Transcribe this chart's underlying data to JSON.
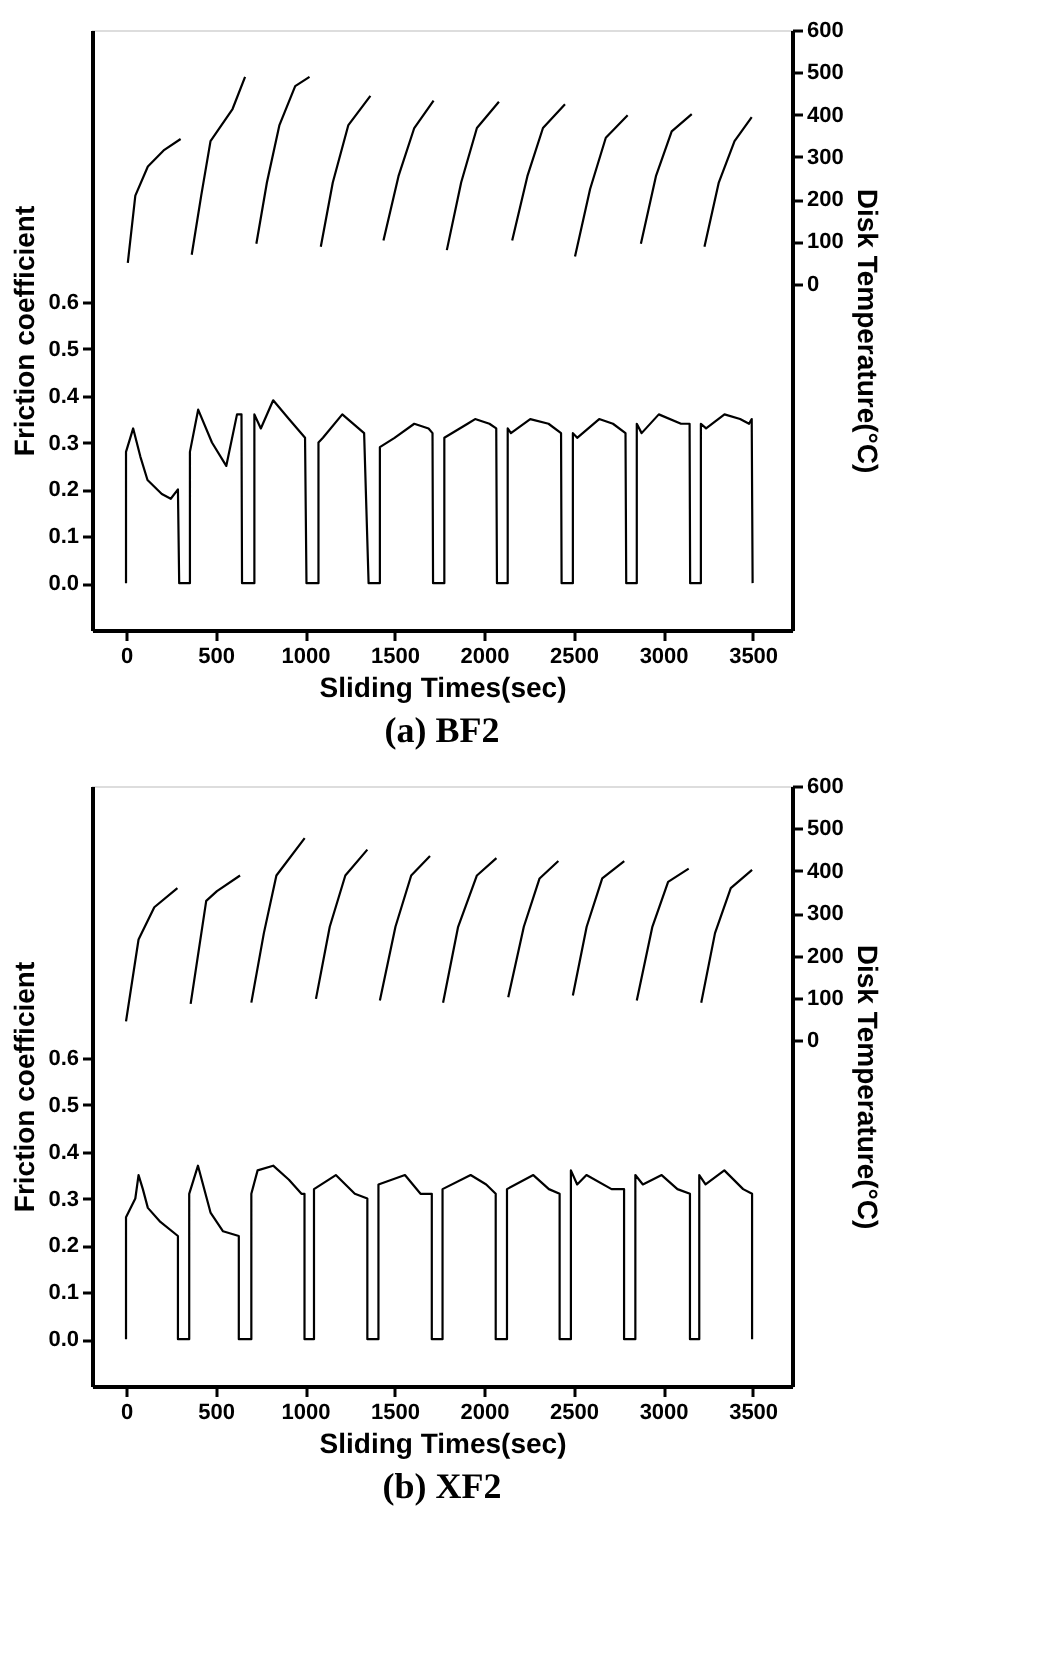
{
  "chart_data": [
    {
      "type": "line",
      "title": "(a) BF2",
      "xlabel": "Sliding Times(sec)",
      "ylabel": "Friction coefficient",
      "y2label": "Disk Temperature(°C)",
      "xlim": [
        -190,
        3720
      ],
      "xticks": [
        0,
        500,
        1000,
        1500,
        2000,
        2500,
        3000,
        3500
      ],
      "ylim": [
        -0.1,
        1.18
      ],
      "yticks": [
        {
          "value": 0,
          "label": "0.0"
        },
        0.1,
        0.2,
        0.3,
        0.4,
        0.5,
        0.6
      ],
      "y2lim": [
        -820,
        600
      ],
      "y2ticks": [
        0,
        100,
        200,
        300,
        400,
        500,
        600
      ],
      "grid": false,
      "series": [
        {
          "color": "#000000",
          "x": [
            0,
            0,
            40,
            80,
            120,
            200,
            250,
            290,
            297,
            357,
            357,
            403,
            480,
            560,
            620,
            645,
            648,
            717,
            717,
            753,
            822,
            910,
            1000,
            1008,
            1075,
            1075,
            1100,
            1208,
            1330,
            1355,
            1418,
            1418,
            1500,
            1610,
            1690,
            1712,
            1715,
            1778,
            1778,
            1908,
            1950,
            2030,
            2068,
            2072,
            2132,
            2132,
            2150,
            2258,
            2360,
            2430,
            2433,
            2496,
            2496,
            2520,
            2643,
            2720,
            2790,
            2794,
            2853,
            2853,
            2880,
            2976,
            3100,
            3148,
            3151,
            3211,
            3211,
            3240,
            3343,
            3430,
            3480,
            3495,
            3500
          ],
          "values": [
            0,
            0.28,
            0.33,
            0.27,
            0.22,
            0.19,
            0.18,
            0.2,
            0,
            0,
            0.28,
            0.37,
            0.3,
            0.25,
            0.36,
            0.36,
            0,
            0,
            0.36,
            0.33,
            0.39,
            0.35,
            0.31,
            0,
            0,
            0.3,
            0.31,
            0.36,
            0.32,
            0,
            0,
            0.29,
            0.31,
            0.34,
            0.33,
            0.32,
            0,
            0,
            0.31,
            0.34,
            0.35,
            0.34,
            0.33,
            0,
            0,
            0.33,
            0.32,
            0.35,
            0.34,
            0.32,
            0,
            0,
            0.32,
            0.31,
            0.35,
            0.34,
            0.32,
            0,
            0,
            0.34,
            0.32,
            0.36,
            0.34,
            0.34,
            0,
            0,
            0.34,
            0.33,
            0.36,
            0.35,
            0.34,
            0.35,
            0
          ]
        },
        {
          "color": "#000000",
          "axis": "y2",
          "x": [
            10,
            52,
            122,
            210,
            305,
            336,
            367,
            420,
            472,
            595,
            665,
            696,
            728,
            787,
            857,
            945,
            1025,
            1056,
            1088,
            1155,
            1242,
            1365,
            1400,
            1438,
            1522,
            1610,
            1718,
            1755,
            1792,
            1872,
            1960,
            2083,
            2120,
            2157,
            2242,
            2329,
            2452,
            2480,
            2508,
            2592,
            2680,
            2802,
            2840,
            2876,
            2960,
            3048,
            3160,
            3195,
            3231,
            3311,
            3399,
            3495
          ],
          "values": [
            49,
            208,
            277,
            315,
            342,
            null,
            68,
            208,
            337,
            413,
            489,
            null,
            94,
            239,
            375,
            467,
            489,
            null,
            87,
            239,
            375,
            444,
            null,
            102,
            254,
            368,
            433,
            null,
            79,
            239,
            368,
            430,
            null,
            102,
            254,
            368,
            424,
            null,
            64,
            223,
            345,
            398,
            null,
            94,
            254,
            360,
            401,
            null,
            87,
            239,
            337,
            394
          ]
        }
      ]
    },
    {
      "type": "line",
      "title": "(b) XF2",
      "xlabel": "Sliding Times(sec)",
      "ylabel": "Friction coefficient",
      "y2label": "Disk Temperature(°C)",
      "xlim": [
        -190,
        3720
      ],
      "xticks": [
        0,
        500,
        1000,
        1500,
        2000,
        2500,
        3000,
        3500
      ],
      "ylim": [
        -0.1,
        1.18
      ],
      "yticks": [
        {
          "value": 0,
          "label": "0.0"
        },
        0.1,
        0.2,
        0.3,
        0.4,
        0.5,
        0.6
      ],
      "y2lim": [
        -815,
        600
      ],
      "y2ticks": [
        0,
        100,
        200,
        300,
        400,
        500,
        600
      ],
      "grid": false,
      "series": [
        {
          "color": "#000000",
          "x": [
            0,
            0,
            52,
            70,
            94,
            122,
            192,
            290,
            290,
            353,
            353,
            402,
            472,
            542,
            630,
            630,
            700,
            700,
            735,
            822,
            910,
            980,
            997,
            997,
            1050,
            1050,
            1172,
            1278,
            1348,
            1348,
            1410,
            1410,
            1558,
            1645,
            1708,
            1708,
            1768,
            1768,
            1925,
            2012,
            2065,
            2065,
            2128,
            2128,
            2275,
            2362,
            2422,
            2422,
            2485,
            2485,
            2520,
            2572,
            2712,
            2782,
            2782,
            2845,
            2845,
            2887,
            2992,
            3080,
            3150,
            3150,
            3202,
            3202,
            3237,
            3342,
            3447,
            3497,
            3497
          ],
          "values": [
            0,
            0.26,
            0.3,
            0.35,
            0.32,
            0.28,
            0.25,
            0.22,
            0,
            0,
            0.31,
            0.37,
            0.27,
            0.23,
            0.22,
            0,
            0,
            0.31,
            0.36,
            0.37,
            0.34,
            0.31,
            0.31,
            0,
            0,
            0.32,
            0.35,
            0.31,
            0.3,
            0,
            0,
            0.33,
            0.35,
            0.31,
            0.31,
            0,
            0,
            0.32,
            0.35,
            0.33,
            0.31,
            0,
            0,
            0.32,
            0.35,
            0.32,
            0.31,
            0,
            0,
            0.36,
            0.33,
            0.35,
            0.32,
            0.32,
            0,
            0,
            0.35,
            0.33,
            0.35,
            0.32,
            0.31,
            0,
            0,
            0.35,
            0.33,
            0.36,
            0.32,
            0.31,
            0
          ]
        },
        {
          "color": "#000000",
          "axis": "y2",
          "x": [
            0,
            70,
            158,
            287,
            324,
            361,
            448,
            508,
            637,
            668,
            700,
            770,
            840,
            998,
            1030,
            1061,
            1138,
            1225,
            1348,
            1383,
            1418,
            1505,
            1593,
            1698,
            1735,
            1771,
            1855,
            1960,
            2069,
            2100,
            2135,
            2222,
            2310,
            2415,
            2455,
            2496,
            2573,
            2660,
            2783,
            2818,
            2853,
            2940,
            3028,
            3143,
            3178,
            3213,
            3290,
            3378,
            3497
          ],
          "values": [
            45,
            238,
            314,
            359,
            null,
            86,
            329,
            352,
            389,
            null,
            89,
            253,
            389,
            477,
            null,
            98,
            268,
            389,
            450,
            null,
            94,
            268,
            389,
            435,
            null,
            89,
            268,
            389,
            430,
            null,
            102,
            268,
            382,
            423,
            null,
            106,
            268,
            382,
            423,
            null,
            94,
            268,
            374,
            405,
            null,
            89,
            253,
            359,
            402
          ]
        }
      ]
    }
  ]
}
